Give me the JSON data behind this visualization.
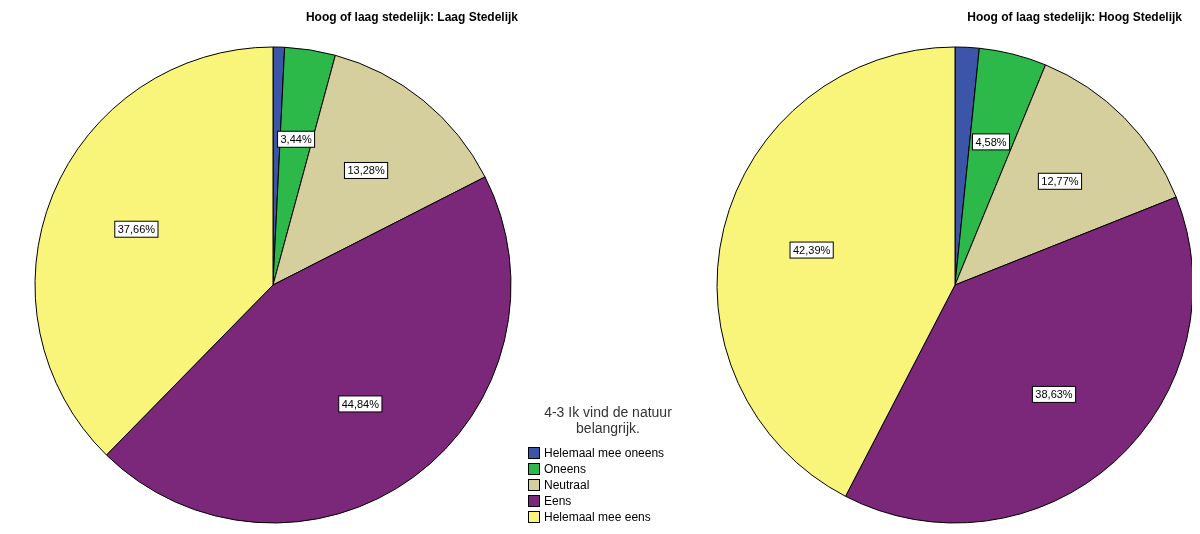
{
  "chart_data": [
    {
      "type": "pie",
      "title": "Hoog of laag stedelijk: Laag Stedelijk",
      "categories": [
        "Helemaal mee oneens",
        "Oneens",
        "Neutraal",
        "Eens",
        "Helemaal mee eens"
      ],
      "values": [
        0.78,
        3.44,
        13.28,
        44.84,
        37.66
      ],
      "value_labels": [
        null,
        "3,44%",
        "13,28%",
        "44,84%",
        "37,66%"
      ],
      "colors": [
        "#3b55a8",
        "#2db84a",
        "#d4cf9c",
        "#7b287a",
        "#f8f57a"
      ],
      "legend": "right",
      "legend_title": "4-3 Ik vind de natuur belangrijk."
    },
    {
      "type": "pie",
      "title": "Hoog of laag stedelijk: Hoog Stedelijk",
      "categories": [
        null,
        null,
        null,
        null,
        null
      ],
      "values": [
        1.63,
        4.58,
        12.77,
        38.63,
        42.39
      ],
      "value_labels": [
        null,
        "4,58%",
        "12,77%",
        "38,63%",
        "42,39%"
      ],
      "colors": [
        "#3b55a8",
        "#2db84a",
        "#d4cf9c",
        "#7b287a",
        "#f8f57a"
      ]
    }
  ]
}
